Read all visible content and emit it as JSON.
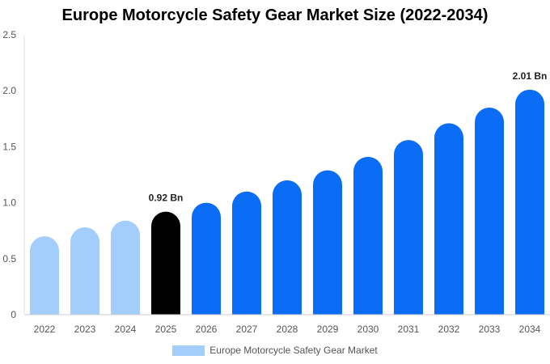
{
  "chart_data": {
    "type": "bar",
    "title": "Europe Motorcycle Safety Gear Market Size (2022-2034)",
    "xlabel": "",
    "ylabel": "",
    "categories": [
      "2022",
      "2023",
      "2024",
      "2025",
      "2026",
      "2027",
      "2028",
      "2029",
      "2030",
      "2031",
      "2032",
      "2033",
      "2034"
    ],
    "series": [
      {
        "name": "Europe Motorcycle Safety Gear Market",
        "values": [
          0.7,
          0.78,
          0.84,
          0.92,
          1.0,
          1.1,
          1.2,
          1.29,
          1.41,
          1.56,
          1.71,
          1.85,
          2.01
        ]
      }
    ],
    "bar_colors": [
      "#a3cdfb",
      "#a3cdfb",
      "#a3cdfb",
      "#000000",
      "#0b6df5",
      "#0b6df5",
      "#0b6df5",
      "#0b6df5",
      "#0b6df5",
      "#0b6df5",
      "#0b6df5",
      "#0b6df5",
      "#0b6df5"
    ],
    "data_labels": [
      {
        "category": "2025",
        "text": "0.92 Bn"
      },
      {
        "category": "2034",
        "text": "2.01 Bn"
      }
    ],
    "yticks": [
      "0",
      "0.5",
      "1.0",
      "1.5",
      "2.0",
      "2.5"
    ],
    "ylim": [
      0,
      2.5
    ],
    "grid": false,
    "legend": {
      "position": "bottom",
      "label": "Europe Motorcycle Safety Gear Market",
      "color": "#a3cdfb"
    }
  }
}
